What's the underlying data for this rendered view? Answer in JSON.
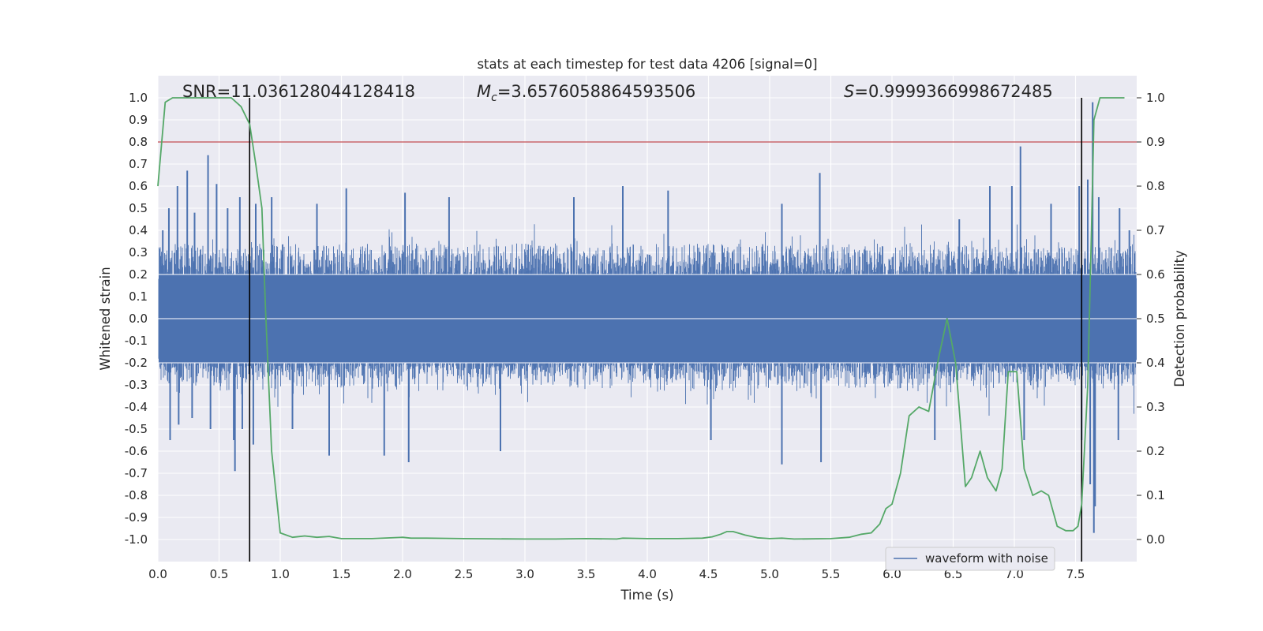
{
  "chart_data": {
    "type": "line",
    "title": "stats at each timestep for test data 4206 [signal=0]",
    "xlabel": "Time (s)",
    "ylabel": "Whitened strain",
    "ylabel_right": "Detection probability",
    "xlim": [
      0.0,
      8.0
    ],
    "ylim": [
      -1.1,
      1.1
    ],
    "ylim_right": [
      -0.05,
      1.05
    ],
    "x_ticks": [
      "0.0",
      "0.5",
      "1.0",
      "1.5",
      "2.0",
      "2.5",
      "3.0",
      "3.5",
      "4.0",
      "4.5",
      "5.0",
      "5.5",
      "6.0",
      "6.5",
      "7.0",
      "7.5"
    ],
    "y_ticks": [
      "1.0",
      "0.9",
      "0.8",
      "0.7",
      "0.6",
      "0.5",
      "0.4",
      "0.3",
      "0.2",
      "0.1",
      "0.0",
      "-0.1",
      "-0.2",
      "-0.3",
      "-0.4",
      "-0.5",
      "-0.6",
      "-0.7",
      "-0.8",
      "-0.9",
      "-1.0"
    ],
    "y_ticks_right": [
      "1.0",
      "0.9",
      "0.8",
      "0.7",
      "0.6",
      "0.5",
      "0.4",
      "0.3",
      "0.2",
      "0.1",
      "0.0"
    ],
    "grid": true,
    "legend": {
      "position": "lower-right",
      "entries": [
        "waveform with noise"
      ]
    },
    "annotations": {
      "snr": "SNR=11.036128044128418",
      "mc_symbol": "M",
      "mc_sub": "c",
      "mc_value": "=3.6576058864593506",
      "s_symbol": "S",
      "s_value": "=0.9999366998672485"
    },
    "threshold": {
      "value": 0.9,
      "axis": "right",
      "color": "#c44e52"
    },
    "vlines": [
      0.75,
      7.55
    ],
    "vline_range": [
      -0.05,
      1.0
    ],
    "series": [
      {
        "name": "waveform with noise",
        "axis": "left",
        "color": "#4c72b0",
        "spikes": [
          {
            "x": 0.04,
            "y": 0.4
          },
          {
            "x": 0.09,
            "y": 0.5
          },
          {
            "x": 0.1,
            "y": -0.55
          },
          {
            "x": 0.16,
            "y": 0.6
          },
          {
            "x": 0.17,
            "y": -0.48
          },
          {
            "x": 0.24,
            "y": 0.67
          },
          {
            "x": 0.28,
            "y": -0.45
          },
          {
            "x": 0.3,
            "y": 0.48
          },
          {
            "x": 0.41,
            "y": 0.74
          },
          {
            "x": 0.43,
            "y": -0.5
          },
          {
            "x": 0.48,
            "y": 0.61
          },
          {
            "x": 0.57,
            "y": 0.5
          },
          {
            "x": 0.62,
            "y": -0.55
          },
          {
            "x": 0.63,
            "y": -0.69
          },
          {
            "x": 0.67,
            "y": 0.55
          },
          {
            "x": 0.69,
            "y": -0.5
          },
          {
            "x": 0.78,
            "y": -0.57
          },
          {
            "x": 0.8,
            "y": 0.52
          },
          {
            "x": 0.93,
            "y": 0.55
          },
          {
            "x": 1.1,
            "y": -0.5
          },
          {
            "x": 1.3,
            "y": 0.52
          },
          {
            "x": 1.4,
            "y": -0.62
          },
          {
            "x": 1.54,
            "y": 0.59
          },
          {
            "x": 1.85,
            "y": -0.62
          },
          {
            "x": 2.02,
            "y": 0.57
          },
          {
            "x": 2.05,
            "y": -0.65
          },
          {
            "x": 2.38,
            "y": 0.55
          },
          {
            "x": 2.8,
            "y": -0.6
          },
          {
            "x": 3.4,
            "y": 0.55
          },
          {
            "x": 3.8,
            "y": 0.6
          },
          {
            "x": 4.17,
            "y": 0.58
          },
          {
            "x": 4.52,
            "y": -0.55
          },
          {
            "x": 5.1,
            "y": 0.52
          },
          {
            "x": 5.1,
            "y": -0.66
          },
          {
            "x": 5.41,
            "y": 0.66
          },
          {
            "x": 5.42,
            "y": -0.65
          },
          {
            "x": 6.35,
            "y": -0.55
          },
          {
            "x": 6.55,
            "y": 0.45
          },
          {
            "x": 6.8,
            "y": 0.6
          },
          {
            "x": 6.98,
            "y": 0.6
          },
          {
            "x": 7.05,
            "y": 0.78
          },
          {
            "x": 7.08,
            "y": -0.55
          },
          {
            "x": 7.3,
            "y": 0.52
          },
          {
            "x": 7.53,
            "y": 0.6
          },
          {
            "x": 7.55,
            "y": -0.55
          },
          {
            "x": 7.6,
            "y": 0.63
          },
          {
            "x": 7.62,
            "y": -0.75
          },
          {
            "x": 7.64,
            "y": 0.98
          },
          {
            "x": 7.65,
            "y": -0.97
          },
          {
            "x": 7.66,
            "y": -0.85
          },
          {
            "x": 7.69,
            "y": 0.55
          },
          {
            "x": 7.85,
            "y": -0.55
          },
          {
            "x": 7.86,
            "y": 0.5
          },
          {
            "x": 7.94,
            "y": 0.4
          }
        ]
      },
      {
        "name": "detection probability",
        "axis": "right",
        "color": "#55a868",
        "x": [
          0.0,
          0.06,
          0.12,
          0.2,
          0.3,
          0.4,
          0.5,
          0.6,
          0.68,
          0.75,
          0.8,
          0.85,
          0.88,
          0.93,
          1.0,
          1.1,
          1.2,
          1.3,
          1.4,
          1.5,
          1.75,
          2.0,
          2.07,
          2.2,
          2.5,
          3.0,
          3.25,
          3.5,
          3.75,
          3.8,
          4.0,
          4.25,
          4.45,
          4.53,
          4.6,
          4.65,
          4.7,
          4.8,
          4.9,
          5.0,
          5.1,
          5.2,
          5.5,
          5.65,
          5.75,
          5.83,
          5.9,
          5.95,
          6.0,
          6.07,
          6.14,
          6.22,
          6.3,
          6.38,
          6.45,
          6.52,
          6.6,
          6.65,
          6.72,
          6.78,
          6.85,
          6.9,
          6.95,
          7.02,
          7.08,
          7.15,
          7.22,
          7.28,
          7.35,
          7.42,
          7.48,
          7.52,
          7.55,
          7.6,
          7.63,
          7.65,
          7.7,
          7.9
        ],
        "y": [
          0.8,
          0.99,
          1.0,
          1.0,
          1.0,
          1.0,
          1.0,
          1.0,
          0.98,
          0.94,
          0.85,
          0.75,
          0.52,
          0.2,
          0.015,
          0.005,
          0.008,
          0.005,
          0.007,
          0.002,
          0.002,
          0.005,
          0.003,
          0.003,
          0.002,
          0.001,
          0.001,
          0.002,
          0.001,
          0.003,
          0.002,
          0.002,
          0.003,
          0.006,
          0.012,
          0.018,
          0.018,
          0.01,
          0.004,
          0.002,
          0.003,
          0.001,
          0.002,
          0.005,
          0.012,
          0.015,
          0.035,
          0.07,
          0.08,
          0.15,
          0.28,
          0.3,
          0.29,
          0.41,
          0.5,
          0.4,
          0.12,
          0.14,
          0.2,
          0.14,
          0.11,
          0.16,
          0.38,
          0.38,
          0.16,
          0.1,
          0.11,
          0.1,
          0.03,
          0.02,
          0.02,
          0.03,
          0.08,
          0.35,
          0.7,
          0.95,
          1.0,
          1.0
        ]
      }
    ]
  }
}
